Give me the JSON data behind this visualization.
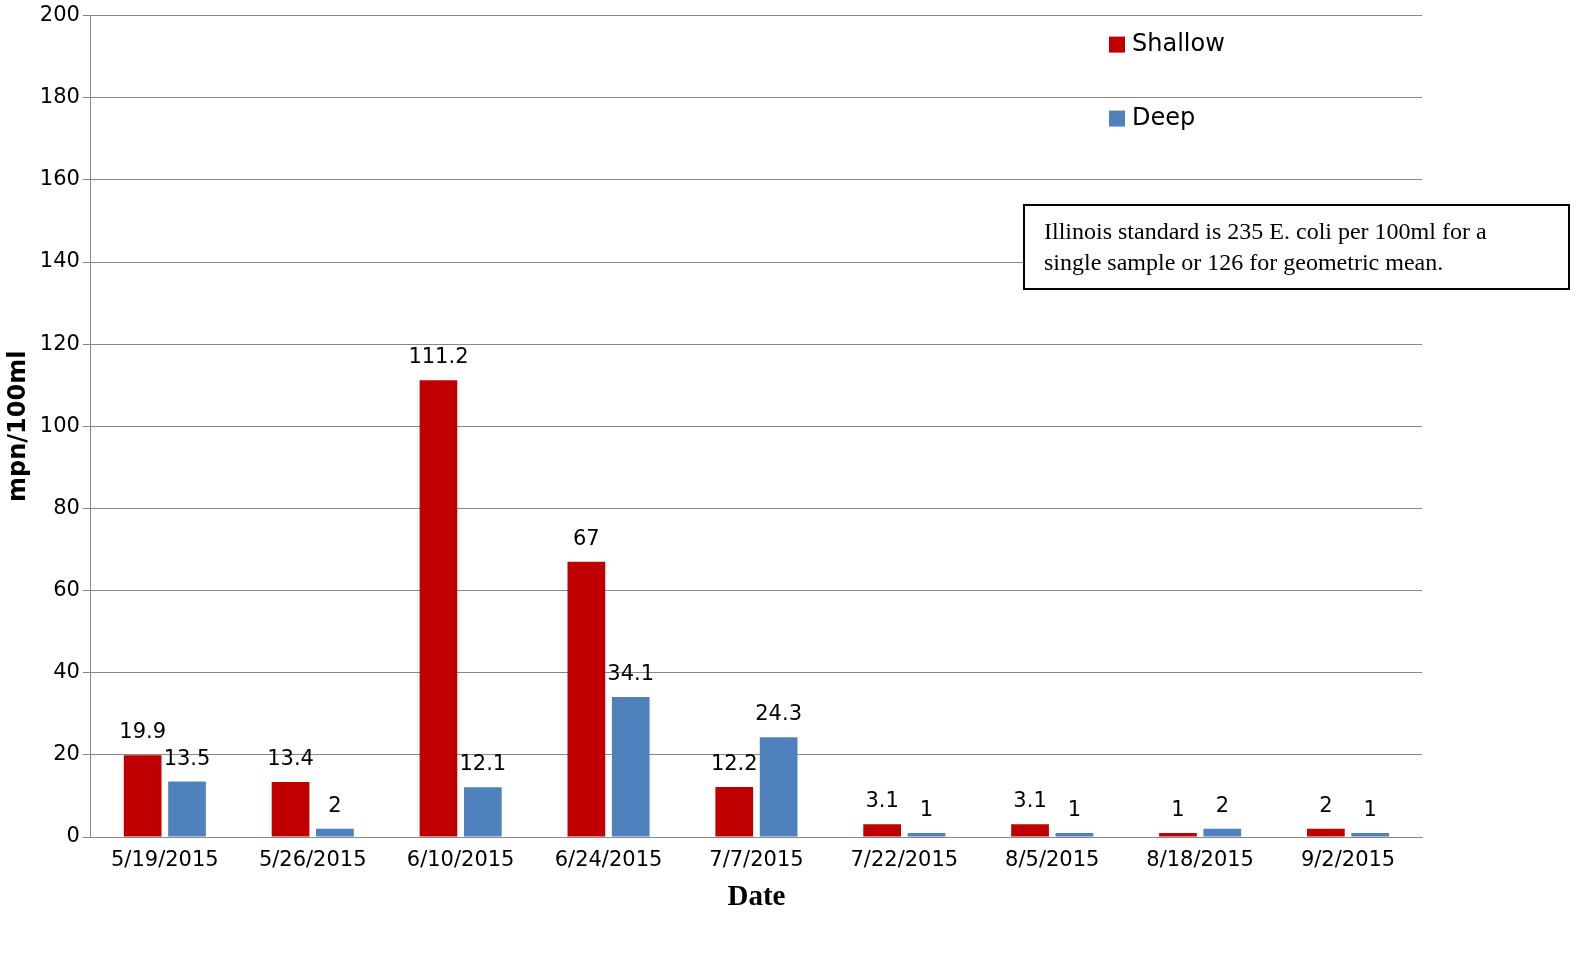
{
  "chart_data": {
    "type": "bar",
    "xlabel": "Date",
    "ylabel": "mpn/100ml",
    "categories": [
      "5/19/2015",
      "5/26/2015",
      "6/10/2015",
      "6/24/2015",
      "7/7/2015",
      "7/22/2015",
      "8/5/2015",
      "8/18/2015",
      "9/2/2015"
    ],
    "series": [
      {
        "name": "Shallow",
        "color": "#c00000",
        "values": [
          19.9,
          13.4,
          111.2,
          67,
          12.2,
          3.1,
          3.1,
          1,
          2
        ]
      },
      {
        "name": "Deep",
        "color": "#4f81bd",
        "values": [
          13.5,
          2,
          12.1,
          34.1,
          24.3,
          1,
          1,
          2,
          1
        ]
      }
    ],
    "ylim": [
      0,
      200
    ],
    "yticks": [
      0,
      20,
      40,
      60,
      80,
      100,
      120,
      140,
      160,
      180,
      200
    ],
    "grid": "y",
    "legend": "top right",
    "data_labels": true,
    "annotations": [
      "Illinois standard is 235 E. coli per 100ml for a single sample or 126 for geometric mean."
    ]
  }
}
